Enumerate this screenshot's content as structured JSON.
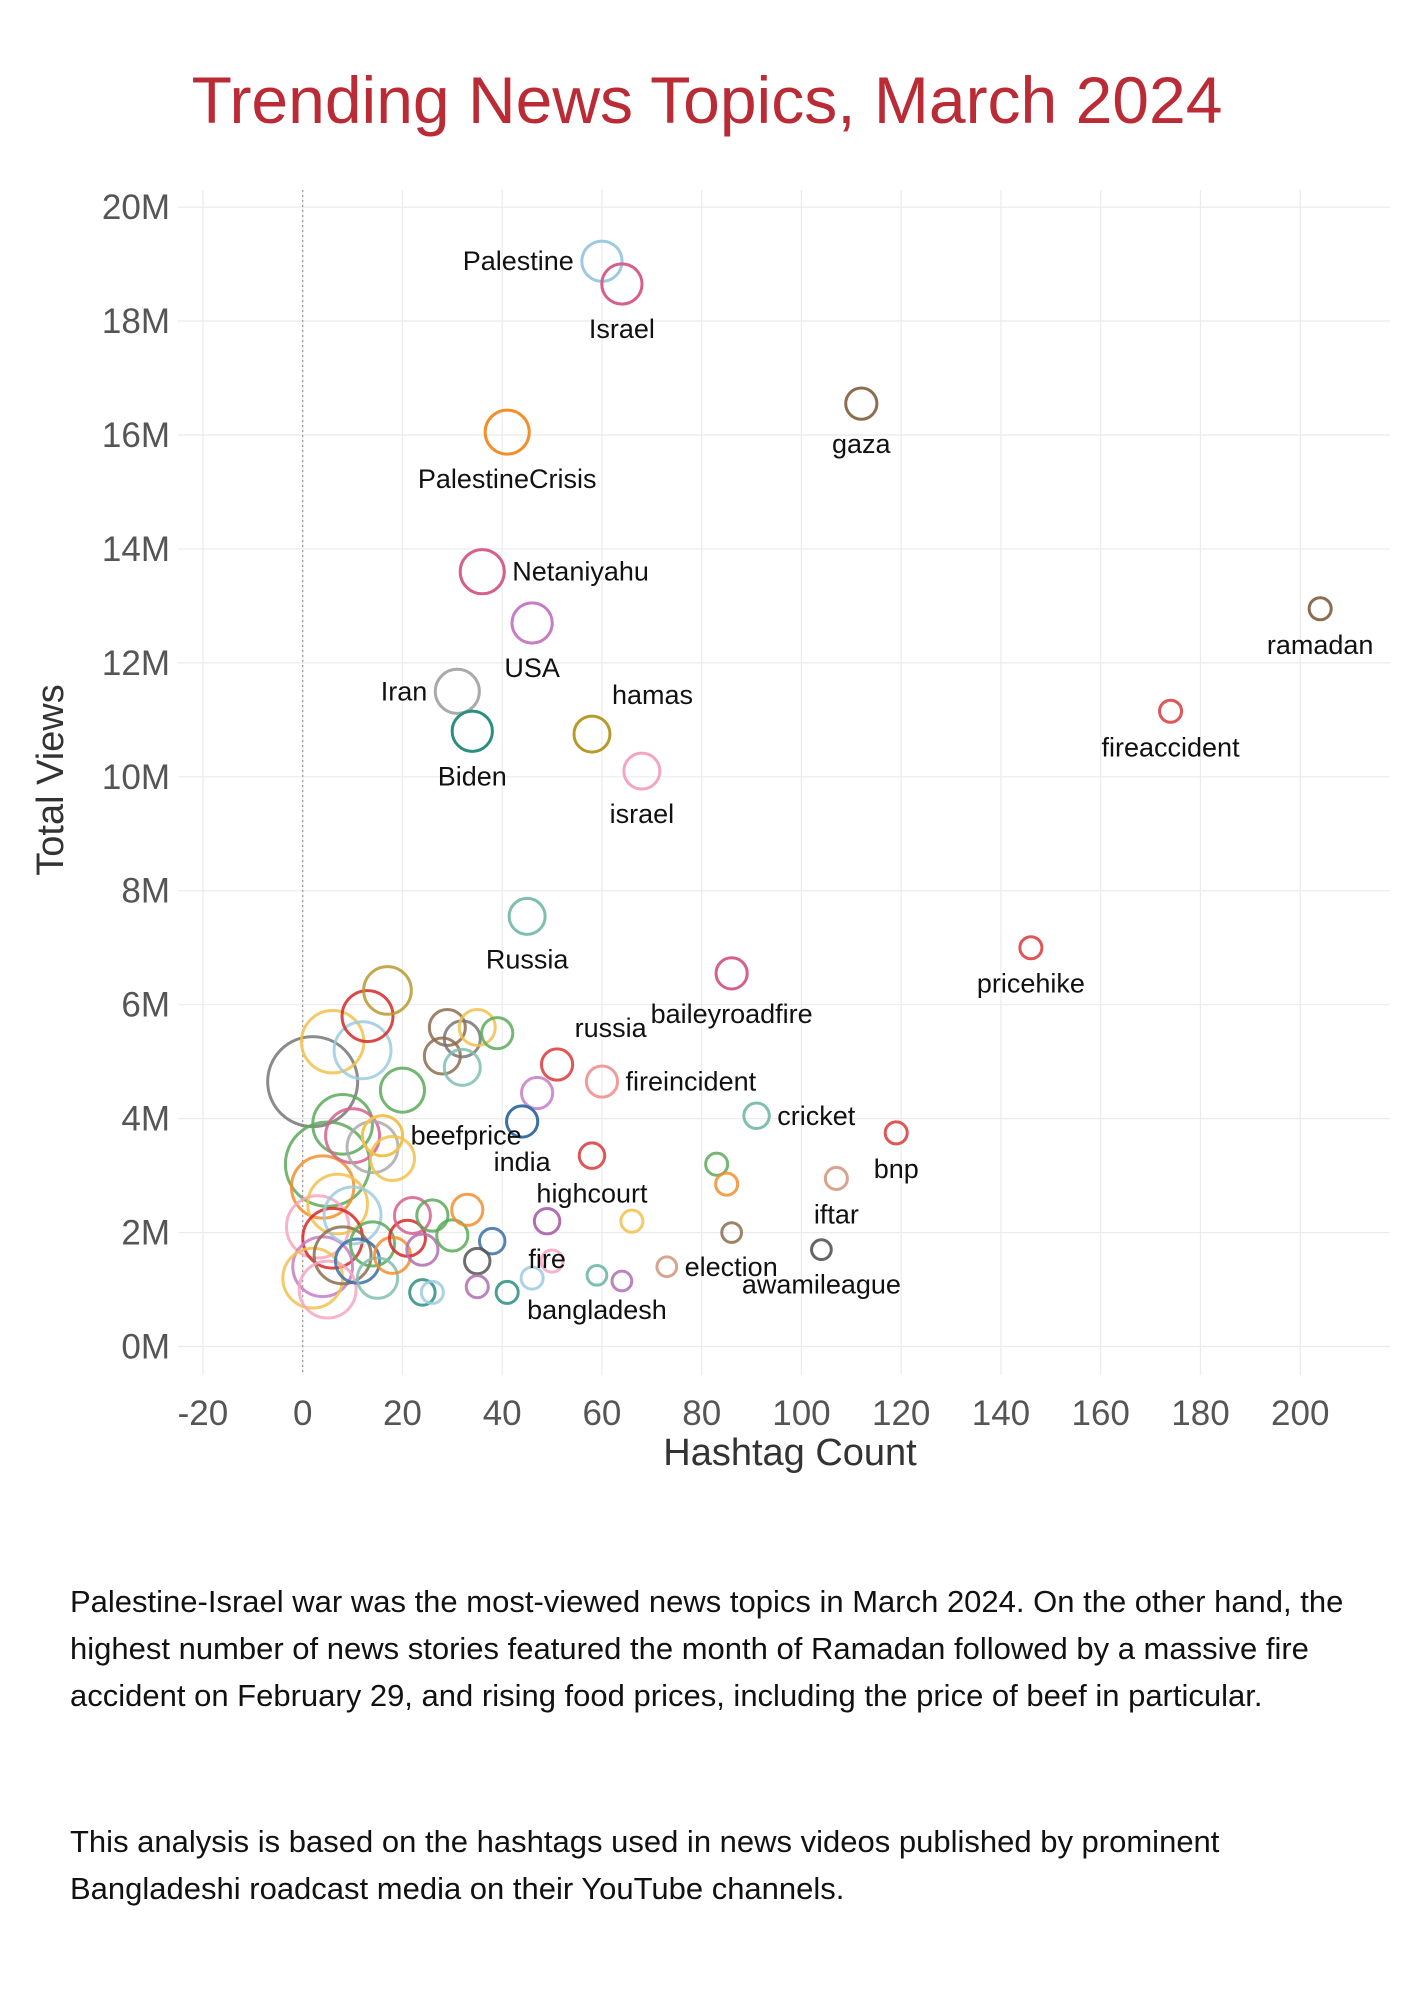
{
  "page": {
    "title": "Trending News Topics, March 2024",
    "caption_1": "Palestine-Israel war was the most-viewed news topics in March 2024. On the other hand, the highest number of news stories featured the month of Ramadan followed by a massive fire accident on February 29, and rising food prices, including the price of beef in particular.",
    "caption_2": "This analysis is based on the hashtags used in news videos published by prominent Bangladeshi roadcast media on their YouTube channels."
  },
  "chart_data": {
    "type": "scatter",
    "title": "Trending News Topics, March 2024",
    "xlabel": "Hashtag Count",
    "ylabel": "Total Views",
    "xlim": [
      -25,
      218
    ],
    "ylim": [
      -0.5,
      20.3
    ],
    "x_ticks": [
      -20,
      0,
      20,
      40,
      60,
      80,
      100,
      120,
      140,
      160,
      180,
      200
    ],
    "x_tick_labels": [
      "-20",
      "0",
      "20",
      "40",
      "60",
      "80",
      "100",
      "120",
      "140",
      "160",
      "180",
      "200"
    ],
    "y_ticks": [
      0,
      2,
      4,
      6,
      8,
      10,
      12,
      14,
      16,
      18,
      20
    ],
    "y_tick_labels": [
      "0M",
      "2M",
      "4M",
      "6M",
      "8M",
      "10M",
      "12M",
      "14M",
      "16M",
      "18M",
      "20M"
    ],
    "y_unit": "millions of views",
    "grid": true,
    "reference_line_x": 0,
    "labeled_points": [
      {
        "label": "Palestine",
        "x": 60,
        "y": 19.05,
        "size": 5,
        "color": "#9ecae1",
        "label_pos": "left"
      },
      {
        "label": "Israel",
        "x": 64,
        "y": 18.65,
        "size": 5,
        "color": "#d6608b",
        "label_pos": "below"
      },
      {
        "label": "gaza",
        "x": 112,
        "y": 16.55,
        "size": 3,
        "color": "#8c6d4f",
        "label_pos": "below"
      },
      {
        "label": "PalestineCrisis",
        "x": 41,
        "y": 16.05,
        "size": 6,
        "color": "#f28e2b",
        "label_pos": "below"
      },
      {
        "label": "Netaniyahu",
        "x": 36,
        "y": 13.6,
        "size": 6,
        "color": "#d6608b",
        "label_pos": "right"
      },
      {
        "label": "USA",
        "x": 46,
        "y": 12.7,
        "size": 5,
        "color": "#c77cc7",
        "label_pos": "below"
      },
      {
        "label": "ramadan",
        "x": 204,
        "y": 12.95,
        "size": 1.5,
        "color": "#8c6d4f",
        "label_pos": "below"
      },
      {
        "label": "Iran",
        "x": 31,
        "y": 11.5,
        "size": 6,
        "color": "#aaaaaa",
        "label_pos": "left"
      },
      {
        "label": "hamas",
        "x": 58,
        "y": 10.75,
        "size": 4,
        "color": "#b89a2b",
        "label_pos": "above-right"
      },
      {
        "label": "Biden",
        "x": 34,
        "y": 10.8,
        "size": 5,
        "color": "#2a8f80",
        "label_pos": "below"
      },
      {
        "label": "israel",
        "x": 68,
        "y": 10.1,
        "size": 4,
        "color": "#f4a6c0",
        "label_pos": "below"
      },
      {
        "label": "fireaccident",
        "x": 174,
        "y": 11.15,
        "size": 1.5,
        "color": "#e05555",
        "label_pos": "below"
      },
      {
        "label": "Russia",
        "x": 45,
        "y": 7.55,
        "size": 4,
        "color": "#7fbfb0",
        "label_pos": "below"
      },
      {
        "label": "pricehike",
        "x": 146,
        "y": 7.0,
        "size": 1.5,
        "color": "#e05555",
        "label_pos": "below"
      },
      {
        "label": "baileyroadfire",
        "x": 86,
        "y": 6.55,
        "size": 3,
        "color": "#d6608b",
        "label_pos": "below"
      },
      {
        "label": "russia",
        "x": 51,
        "y": 4.95,
        "size": 3,
        "color": "#e05555",
        "label_pos": "above-right"
      },
      {
        "label": "fireincident",
        "x": 60,
        "y": 4.65,
        "size": 3,
        "color": "#f59a9a",
        "label_pos": "right"
      },
      {
        "label": "cricket",
        "x": 91,
        "y": 4.05,
        "size": 2,
        "color": "#7fbfb0",
        "label_pos": "right"
      },
      {
        "label": "bnp",
        "x": 119,
        "y": 3.75,
        "size": 1.5,
        "color": "#e05555",
        "label_pos": "below"
      },
      {
        "label": "beefprice",
        "x": 16,
        "y": 3.7,
        "size": 5,
        "color": "#f2c14e",
        "label_pos": "right"
      },
      {
        "label": "india",
        "x": 44,
        "y": 3.95,
        "size": 3,
        "color": "#3b6fa8",
        "label_pos": "below"
      },
      {
        "label": "highcourt",
        "x": 58,
        "y": 3.35,
        "size": 2,
        "color": "#e05555",
        "label_pos": "below"
      },
      {
        "label": "iftar",
        "x": 107,
        "y": 2.95,
        "size": 1.5,
        "color": "#d9a390",
        "label_pos": "below"
      },
      {
        "label": "fire",
        "x": 49,
        "y": 2.2,
        "size": 2,
        "color": "#b06fb0",
        "label_pos": "below"
      },
      {
        "label": "election",
        "x": 73,
        "y": 1.4,
        "size": 1.2,
        "color": "#d9a390",
        "label_pos": "right"
      },
      {
        "label": "awamileague",
        "x": 104,
        "y": 1.7,
        "size": 1.2,
        "color": "#666666",
        "label_pos": "below"
      },
      {
        "label": "bangladesh",
        "x": 59,
        "y": 1.25,
        "size": 1.2,
        "color": "#7fbfb0",
        "label_pos": "below"
      }
    ],
    "other_points": [
      {
        "x": 2,
        "y": 4.65,
        "size": 25,
        "color": "#777777"
      },
      {
        "x": 5,
        "y": 3.2,
        "size": 22,
        "color": "#5aaa5a"
      },
      {
        "x": 6,
        "y": 5.35,
        "size": 12,
        "color": "#f2c14e"
      },
      {
        "x": 12,
        "y": 5.2,
        "size": 10,
        "color": "#9ecae1"
      },
      {
        "x": 17,
        "y": 6.25,
        "size": 7,
        "color": "#b89a2b"
      },
      {
        "x": 13,
        "y": 5.8,
        "size": 8,
        "color": "#d62728"
      },
      {
        "x": 29,
        "y": 5.6,
        "size": 4,
        "color": "#8c6d4f"
      },
      {
        "x": 32,
        "y": 5.4,
        "size": 4,
        "color": "#777777"
      },
      {
        "x": 35,
        "y": 5.6,
        "size": 4,
        "color": "#f2c14e"
      },
      {
        "x": 39,
        "y": 5.5,
        "size": 3,
        "color": "#5aaa5a"
      },
      {
        "x": 28,
        "y": 5.1,
        "size": 4,
        "color": "#8c6d4f"
      },
      {
        "x": 32,
        "y": 4.9,
        "size": 4,
        "color": "#7fbfb0"
      },
      {
        "x": 20,
        "y": 4.5,
        "size": 6,
        "color": "#5aaa5a"
      },
      {
        "x": 47,
        "y": 4.45,
        "size": 3,
        "color": "#c77cc7"
      },
      {
        "x": 8,
        "y": 3.9,
        "size": 11,
        "color": "#5aaa5a"
      },
      {
        "x": 10,
        "y": 3.7,
        "size": 9,
        "color": "#d6608b"
      },
      {
        "x": 14,
        "y": 3.5,
        "size": 8,
        "color": "#aaaaaa"
      },
      {
        "x": 18,
        "y": 3.3,
        "size": 6,
        "color": "#f2c14e"
      },
      {
        "x": 4,
        "y": 2.8,
        "size": 12,
        "color": "#f28e2b"
      },
      {
        "x": 7,
        "y": 2.5,
        "size": 11,
        "color": "#f2c14e"
      },
      {
        "x": 10,
        "y": 2.3,
        "size": 10,
        "color": "#9ecae1"
      },
      {
        "x": 3,
        "y": 2.1,
        "size": 12,
        "color": "#f4a6c0"
      },
      {
        "x": 6,
        "y": 1.9,
        "size": 11,
        "color": "#d62728"
      },
      {
        "x": 8,
        "y": 1.6,
        "size": 10,
        "color": "#8c6d4f"
      },
      {
        "x": 4,
        "y": 1.4,
        "size": 11,
        "color": "#c77cc7"
      },
      {
        "x": 2,
        "y": 1.2,
        "size": 11,
        "color": "#f2c14e"
      },
      {
        "x": 5,
        "y": 1.0,
        "size": 10,
        "color": "#f4a6c0"
      },
      {
        "x": 11,
        "y": 1.5,
        "size": 6,
        "color": "#3b6fa8"
      },
      {
        "x": 14,
        "y": 1.8,
        "size": 6,
        "color": "#5aaa5a"
      },
      {
        "x": 15,
        "y": 1.2,
        "size": 5,
        "color": "#7fbfb0"
      },
      {
        "x": 18,
        "y": 1.6,
        "size": 4,
        "color": "#f28e2b"
      },
      {
        "x": 21,
        "y": 1.9,
        "size": 4,
        "color": "#d62728"
      },
      {
        "x": 22,
        "y": 2.3,
        "size": 4,
        "color": "#d6608b"
      },
      {
        "x": 26,
        "y": 2.3,
        "size": 3,
        "color": "#5aaa5a"
      },
      {
        "x": 24,
        "y": 1.7,
        "size": 3,
        "color": "#b06fb0"
      },
      {
        "x": 30,
        "y": 1.95,
        "size": 3,
        "color": "#5aaa5a"
      },
      {
        "x": 33,
        "y": 2.4,
        "size": 3,
        "color": "#f28e2b"
      },
      {
        "x": 38,
        "y": 1.85,
        "size": 2,
        "color": "#3b6fa8"
      },
      {
        "x": 35,
        "y": 1.5,
        "size": 2,
        "color": "#555555"
      },
      {
        "x": 35,
        "y": 1.05,
        "size": 1.5,
        "color": "#b06fb0"
      },
      {
        "x": 41,
        "y": 0.95,
        "size": 1.5,
        "color": "#2a8f80"
      },
      {
        "x": 46,
        "y": 1.2,
        "size": 1.5,
        "color": "#9ecae1"
      },
      {
        "x": 50,
        "y": 1.5,
        "size": 1.5,
        "color": "#f4a6c0"
      },
      {
        "x": 24,
        "y": 0.95,
        "size": 2,
        "color": "#2a8f80"
      },
      {
        "x": 26,
        "y": 0.95,
        "size": 1.5,
        "color": "#9ecae1"
      },
      {
        "x": 66,
        "y": 2.2,
        "size": 1.5,
        "color": "#f2c14e"
      },
      {
        "x": 83,
        "y": 3.2,
        "size": 1.5,
        "color": "#5aaa5a"
      },
      {
        "x": 85,
        "y": 2.85,
        "size": 1.5,
        "color": "#f28e2b"
      },
      {
        "x": 86,
        "y": 2.0,
        "size": 1.2,
        "color": "#8c6d4f"
      },
      {
        "x": 64,
        "y": 1.15,
        "size": 1.2,
        "color": "#b06fb0"
      }
    ]
  }
}
